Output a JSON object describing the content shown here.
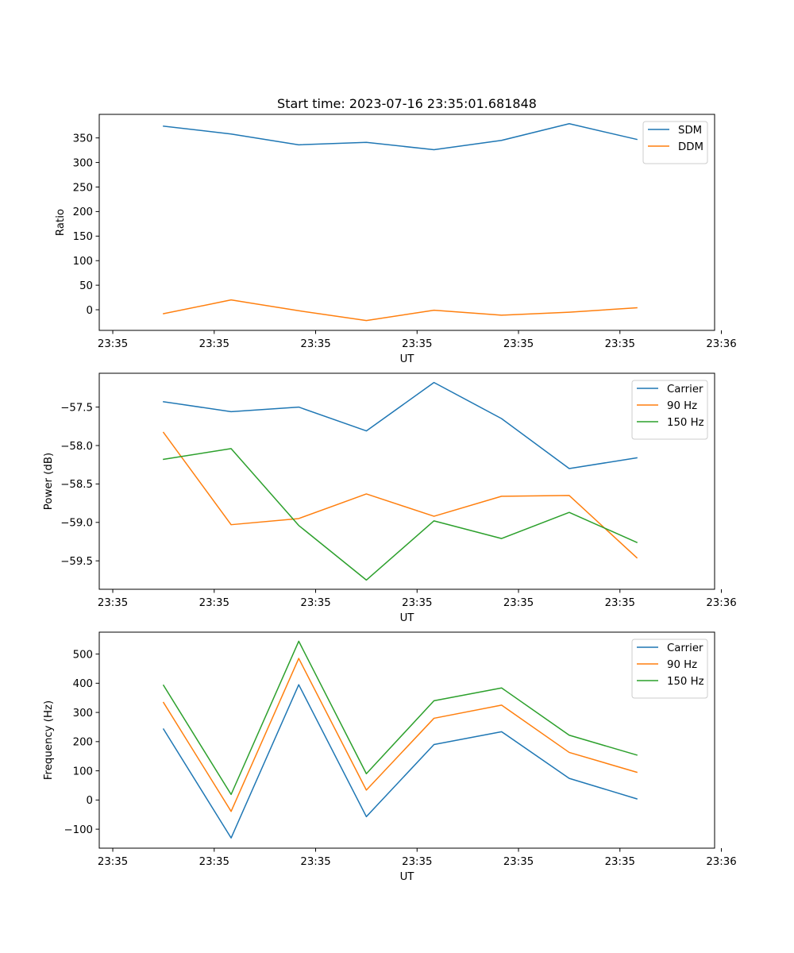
{
  "title": "Start time: 2023-07-16 23:35:01.681848",
  "chart_data": [
    {
      "type": "line",
      "xlabel": "UT",
      "ylabel": "Ratio",
      "xlim": [
        -0.2,
        8.9
      ],
      "ylim": [
        -42,
        398
      ],
      "x": [
        0.75,
        1.75,
        2.75,
        3.75,
        4.75,
        5.75,
        6.75,
        7.75
      ],
      "xticks": {
        "values": [
          0,
          1.5,
          3,
          4.5,
          6,
          7.5,
          9
        ],
        "labels": [
          "23:35",
          "23:35",
          "23:35",
          "23:35",
          "23:35",
          "23:35",
          "23:36"
        ]
      },
      "yticks": {
        "values": [
          0,
          50,
          100,
          150,
          200,
          250,
          300,
          350
        ],
        "labels": [
          "0",
          "50",
          "100",
          "150",
          "200",
          "250",
          "300",
          "350"
        ]
      },
      "legend": "top-right",
      "series": [
        {
          "name": "SDM",
          "color": "#1f77b4",
          "values": [
            374,
            358,
            336,
            341,
            326,
            345,
            379,
            347
          ]
        },
        {
          "name": "DDM",
          "color": "#ff7f0e",
          "values": [
            -8,
            20,
            -2,
            -22,
            -1,
            -11,
            -5,
            4
          ]
        }
      ]
    },
    {
      "type": "line",
      "xlabel": "UT",
      "ylabel": "Power (dB)",
      "xlim": [
        -0.2,
        8.9
      ],
      "ylim": [
        -59.87,
        -57.06
      ],
      "x": [
        0.75,
        1.75,
        2.75,
        3.75,
        4.75,
        5.75,
        6.75,
        7.75
      ],
      "xticks": {
        "values": [
          0,
          1.5,
          3,
          4.5,
          6,
          7.5,
          9
        ],
        "labels": [
          "23:35",
          "23:35",
          "23:35",
          "23:35",
          "23:35",
          "23:35",
          "23:36"
        ]
      },
      "yticks": {
        "values": [
          -59.5,
          -59.0,
          -58.5,
          -58.0,
          -57.5
        ],
        "labels": [
          "−59.5",
          "−59.0",
          "−58.5",
          "−58.0",
          "−57.5"
        ]
      },
      "legend": "top-right",
      "series": [
        {
          "name": "Carrier",
          "color": "#1f77b4",
          "values": [
            -57.43,
            -57.56,
            -57.5,
            -57.81,
            -57.18,
            -57.65,
            -58.3,
            -58.16
          ]
        },
        {
          "name": "90 Hz",
          "color": "#ff7f0e",
          "values": [
            -57.83,
            -59.03,
            -58.95,
            -58.63,
            -58.92,
            -58.66,
            -58.65,
            -59.46
          ]
        },
        {
          "name": "150 Hz",
          "color": "#2ca02c",
          "values": [
            -58.18,
            -58.04,
            -59.04,
            -59.75,
            -58.98,
            -59.21,
            -58.87,
            -59.26
          ]
        }
      ]
    },
    {
      "type": "line",
      "xlabel": "UT",
      "ylabel": "Frequency (Hz)",
      "xlim": [
        -0.2,
        8.9
      ],
      "ylim": [
        -165,
        575
      ],
      "x": [
        0.75,
        1.75,
        2.75,
        3.75,
        4.75,
        5.75,
        6.75,
        7.75
      ],
      "xticks": {
        "values": [
          0,
          1.5,
          3,
          4.5,
          6,
          7.5,
          9
        ],
        "labels": [
          "23:35",
          "23:35",
          "23:35",
          "23:35",
          "23:35",
          "23:35",
          "23:36"
        ]
      },
      "yticks": {
        "values": [
          -100,
          0,
          100,
          200,
          300,
          400,
          500
        ],
        "labels": [
          "−100",
          "0",
          "100",
          "200",
          "300",
          "400",
          "500"
        ]
      },
      "legend": "top-right",
      "series": [
        {
          "name": "Carrier",
          "color": "#1f77b4",
          "values": [
            243,
            -130,
            395,
            -57,
            190,
            234,
            74,
            4
          ]
        },
        {
          "name": "90 Hz",
          "color": "#ff7f0e",
          "values": [
            334,
            -39,
            485,
            34,
            280,
            325,
            163,
            95
          ]
        },
        {
          "name": "150 Hz",
          "color": "#2ca02c",
          "values": [
            393,
            19,
            544,
            90,
            340,
            384,
            222,
            154
          ]
        }
      ]
    }
  ]
}
